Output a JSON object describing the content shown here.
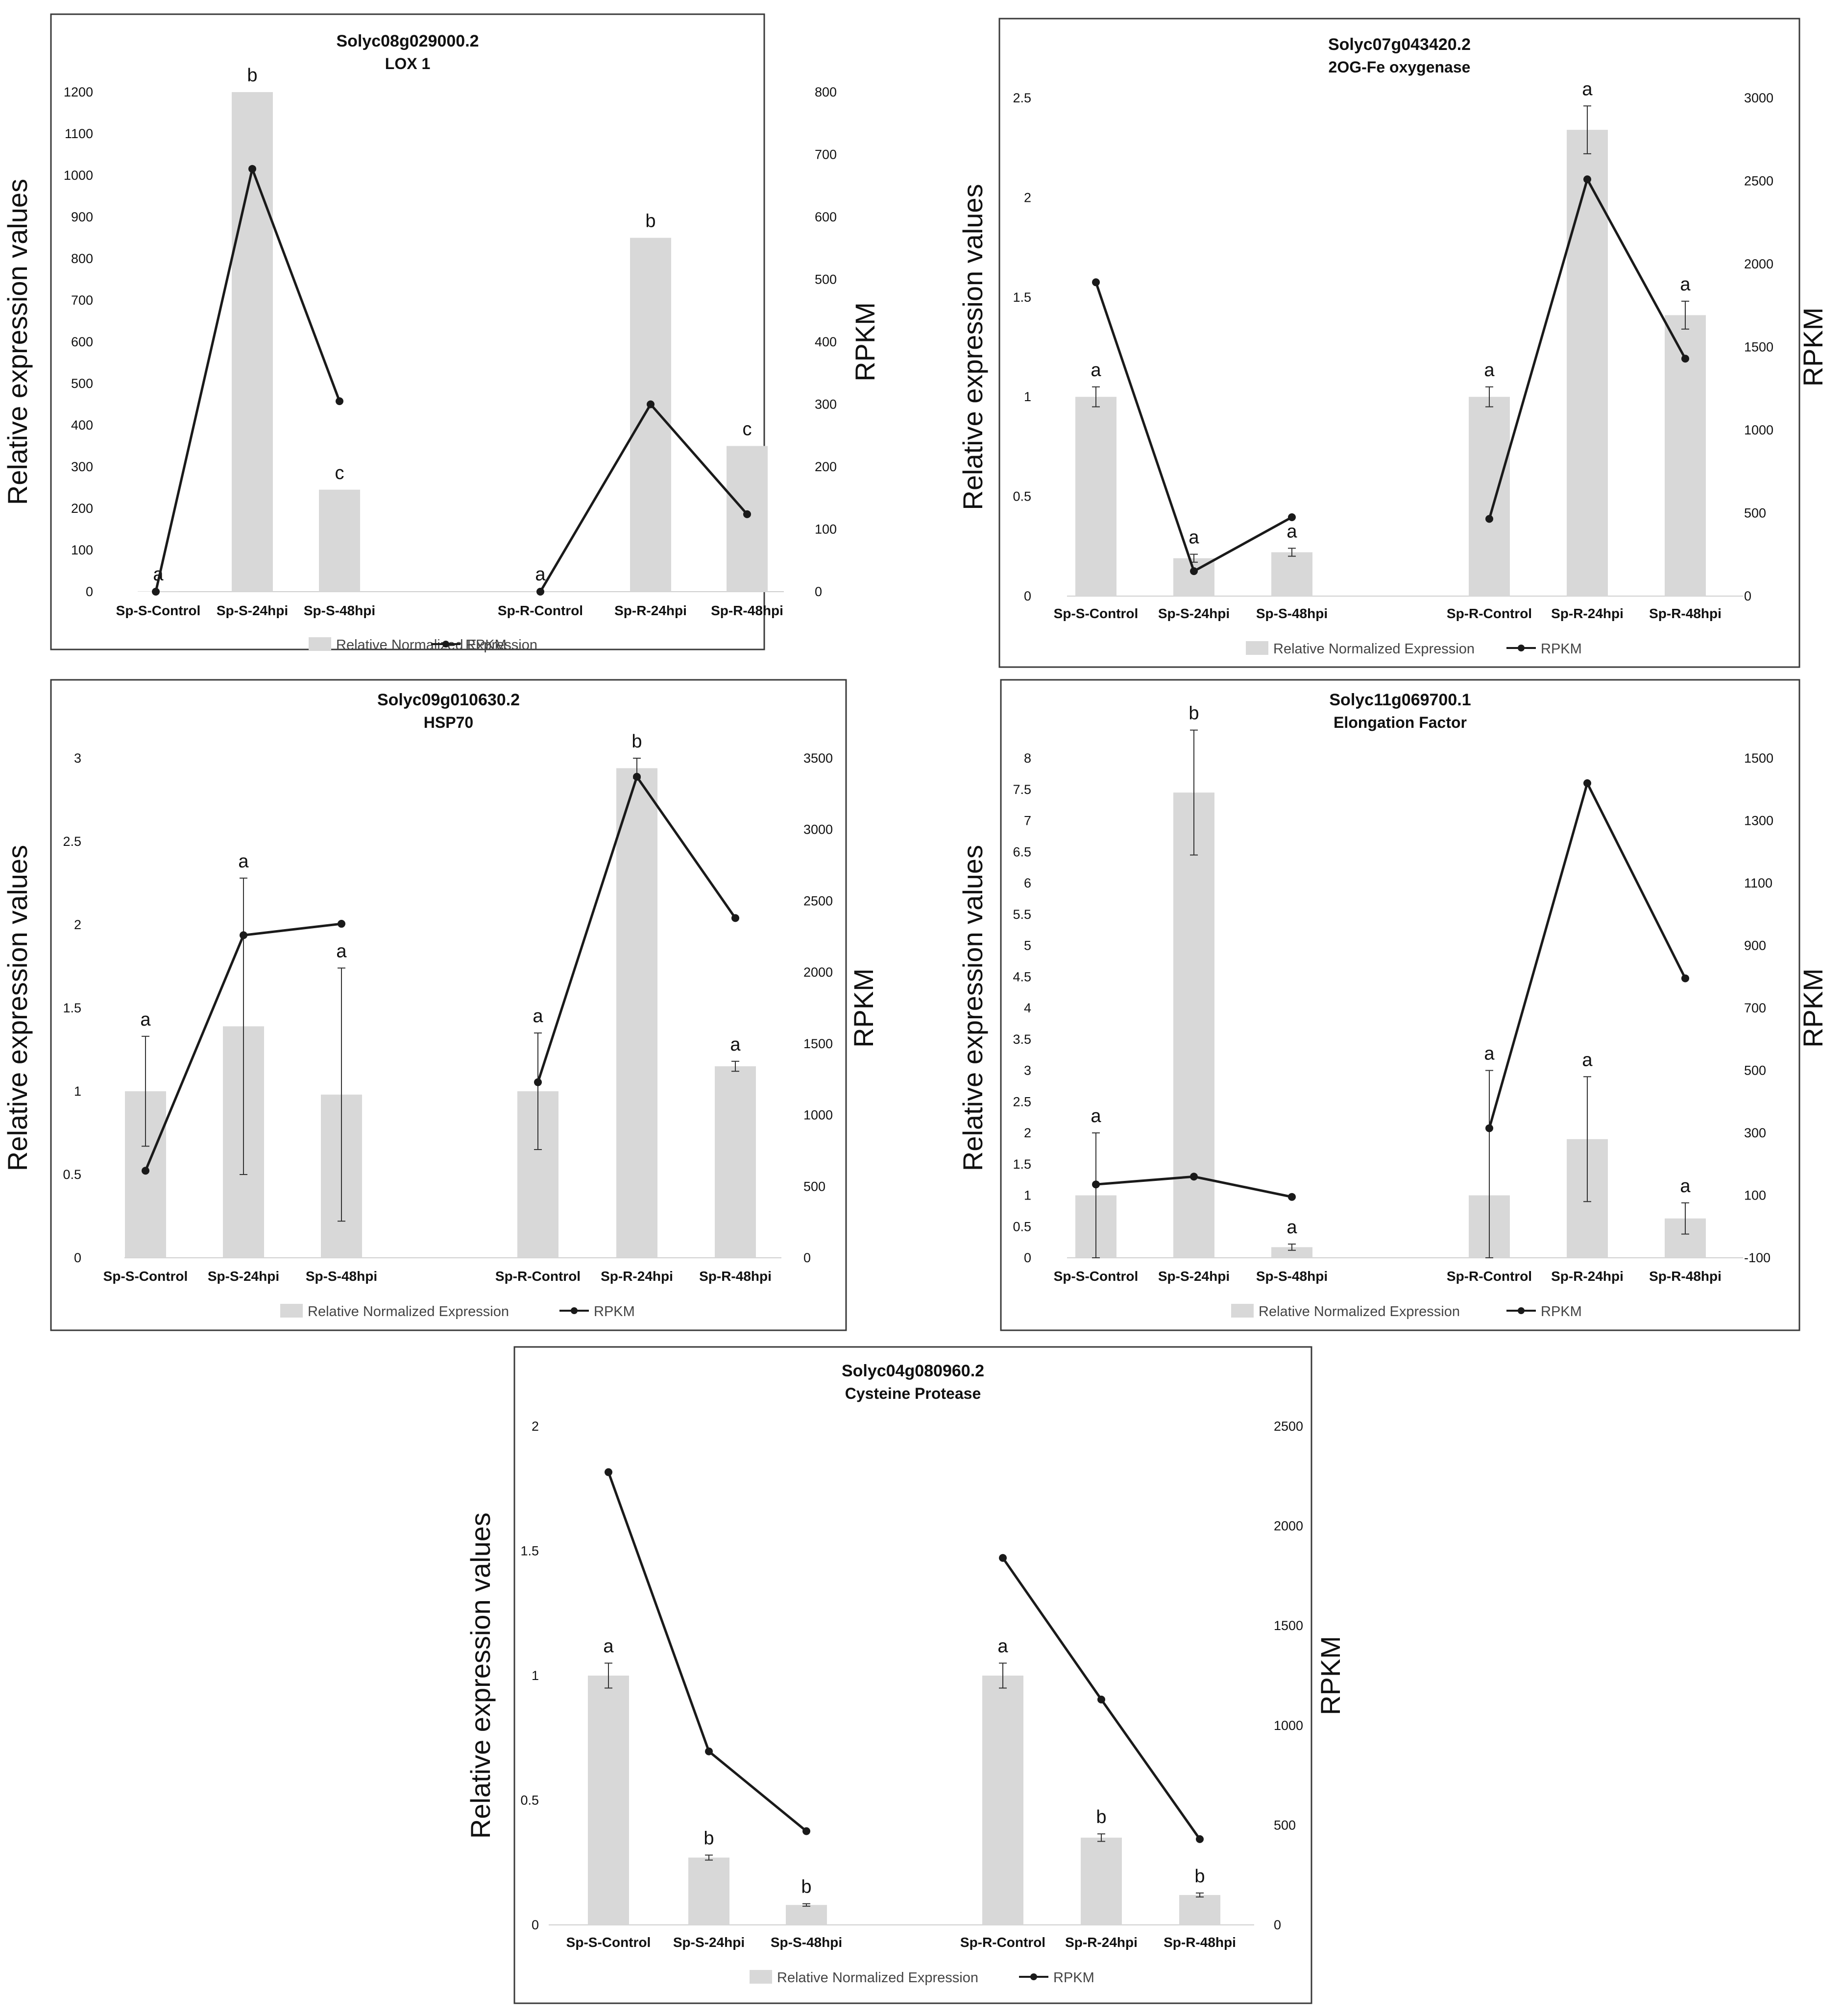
{
  "legend_labels": {
    "bars": "Relative Normalized Expression",
    "line": "RPKM"
  },
  "colors": {
    "bar": "#d8d8d8",
    "line": "#1a1a1a",
    "frame": "#3a3a3a",
    "text": "#111111"
  },
  "chart_data": [
    {
      "type": "bar+line",
      "title": "Solyc08g029000.2",
      "subtitle": "LOX 1",
      "ylabel": "Relative expression values",
      "y2label": "RPKM",
      "categories": [
        "Sp-S-Control",
        "Sp-S-24hpi",
        "Sp-S-48hpi",
        "Sp-R-Control",
        "Sp-R-24hpi",
        "Sp-R-48hpi"
      ],
      "ylim": [
        0,
        1200
      ],
      "yticks": [
        0,
        100,
        200,
        300,
        400,
        500,
        600,
        700,
        800,
        900,
        1000,
        1100,
        1200
      ],
      "y2lim": [
        0,
        800
      ],
      "y2ticks": [
        0,
        100,
        200,
        300,
        400,
        500,
        600,
        700,
        800
      ],
      "bars": [
        1,
        1200,
        245,
        1,
        850,
        350
      ],
      "errors": [
        0,
        0,
        0,
        0,
        0,
        0
      ],
      "letters": [
        "a",
        "b",
        "c",
        "a",
        "b",
        "c"
      ],
      "rpkm": [
        0,
        677,
        305,
        0,
        300,
        124
      ]
    },
    {
      "type": "bar+line",
      "title": "Solyc07g043420.2",
      "subtitle": "2OG-Fe oxygenase",
      "ylabel": "Relative expression values",
      "y2label": "RPKM",
      "categories": [
        "Sp-S-Control",
        "Sp-S-24hpi",
        "Sp-S-48hpi",
        "Sp-R-Control",
        "Sp-R-24hpi",
        "Sp-R-48hpi"
      ],
      "ylim": [
        0,
        2.5
      ],
      "yticks": [
        0,
        0.5,
        1,
        1.5,
        2,
        2.5
      ],
      "y2lim": [
        0,
        3000
      ],
      "y2ticks": [
        0,
        500,
        1000,
        1500,
        2000,
        2500,
        3000
      ],
      "bars": [
        1.0,
        0.19,
        0.22,
        1.0,
        2.34,
        1.41
      ],
      "errors": [
        0.05,
        0.02,
        0.02,
        0.05,
        0.12,
        0.07
      ],
      "letters": [
        "a",
        "a",
        "a",
        "a",
        "a",
        "a"
      ],
      "rpkm": [
        1890,
        150,
        475,
        465,
        2510,
        1430
      ]
    },
    {
      "type": "bar+line",
      "title": "Solyc09g010630.2",
      "subtitle": "HSP70",
      "ylabel": "Relative expression values",
      "y2label": "RPKM",
      "categories": [
        "Sp-S-Control",
        "Sp-S-24hpi",
        "Sp-S-48hpi",
        "Sp-R-Control",
        "Sp-R-24hpi",
        "Sp-R-48hpi"
      ],
      "ylim": [
        0,
        3
      ],
      "yticks": [
        0,
        0.5,
        1,
        1.5,
        2,
        2.5,
        3
      ],
      "y2lim": [
        0,
        3500
      ],
      "y2ticks": [
        0,
        500,
        1000,
        1500,
        2000,
        2500,
        3000,
        3500
      ],
      "bars": [
        1.0,
        1.39,
        0.98,
        1.0,
        2.94,
        1.15
      ],
      "errors": [
        0.33,
        0.89,
        0.76,
        0.35,
        0.06,
        0.03
      ],
      "letters": [
        "a",
        "a",
        "a",
        "a",
        "b",
        "a"
      ],
      "rpkm": [
        610,
        2260,
        2340,
        1230,
        3370,
        2380
      ]
    },
    {
      "type": "bar+line",
      "title": "Solyc11g069700.1",
      "subtitle": "Elongation Factor",
      "ylabel": "Relative expression values",
      "y2label": "RPKM",
      "categories": [
        "Sp-S-Control",
        "Sp-S-24hpi",
        "Sp-S-48hpi",
        "Sp-R-Control",
        "Sp-R-24hpi",
        "Sp-R-48hpi"
      ],
      "ylim": [
        0,
        8
      ],
      "yticks": [
        0,
        0.5,
        1,
        1.5,
        2,
        2.5,
        3,
        3.5,
        4,
        4.5,
        5,
        5.5,
        6,
        6.5,
        7,
        7.5,
        8
      ],
      "y2lim": [
        -100,
        1500
      ],
      "y2ticks": [
        -100,
        100,
        300,
        500,
        700,
        900,
        1100,
        1300,
        1500
      ],
      "bars": [
        1.0,
        7.45,
        0.17,
        1.0,
        1.9,
        0.63
      ],
      "errors": [
        1.0,
        1.0,
        0.05,
        2.0,
        1.0,
        0.25
      ],
      "letters": [
        "a",
        "b",
        "a",
        "a",
        "a",
        "a"
      ],
      "rpkm": [
        135,
        160,
        95,
        315,
        1420,
        795
      ]
    },
    {
      "type": "bar+line",
      "title": "Solyc04g080960.2",
      "subtitle": "Cysteine Protease",
      "ylabel": "Relative expression values",
      "y2label": "RPKM",
      "categories": [
        "Sp-S-Control",
        "Sp-S-24hpi",
        "Sp-S-48hpi",
        "Sp-R-Control",
        "Sp-R-24hpi",
        "Sp-R-48hpi"
      ],
      "ylim": [
        0,
        2
      ],
      "yticks": [
        0,
        0.5,
        1,
        1.5,
        2
      ],
      "y2lim": [
        0,
        2500
      ],
      "y2ticks": [
        0,
        500,
        1000,
        1500,
        2000,
        2500
      ],
      "bars": [
        1.0,
        0.27,
        0.08,
        1.0,
        0.35,
        0.12
      ],
      "errors": [
        0.05,
        0.01,
        0.005,
        0.05,
        0.015,
        0.008
      ],
      "letters": [
        "a",
        "b",
        "b",
        "a",
        "b",
        "b"
      ],
      "rpkm": [
        2270,
        870,
        470,
        1840,
        1130,
        430
      ]
    }
  ]
}
